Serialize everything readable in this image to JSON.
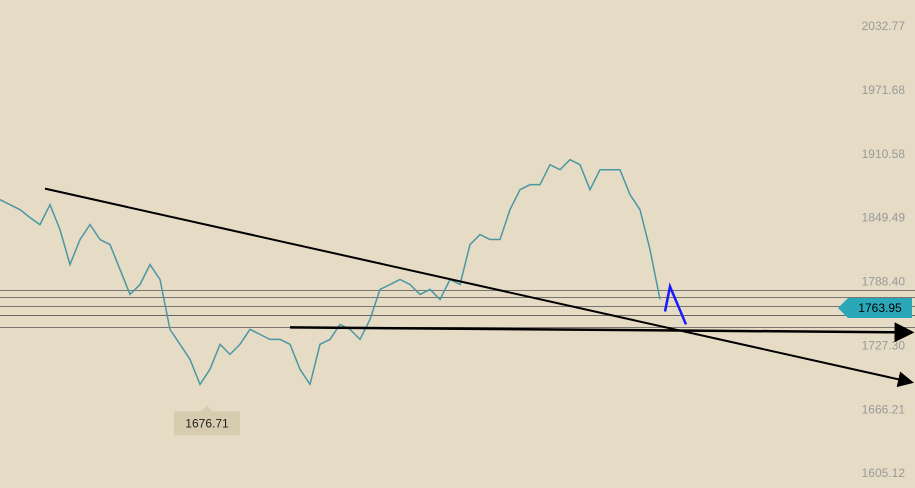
{
  "chart_data": {
    "type": "line",
    "x": [
      0,
      1,
      2,
      3,
      4,
      5,
      6,
      7,
      8,
      9,
      10,
      11,
      12,
      13,
      14,
      15,
      16,
      17,
      18,
      19,
      20,
      21,
      22,
      23,
      24,
      25,
      26,
      27,
      28,
      29,
      30,
      31,
      32,
      33,
      34,
      35,
      36,
      37,
      38,
      39,
      40,
      41,
      42,
      43,
      44,
      45,
      46,
      47,
      48,
      49,
      50,
      51,
      52,
      53,
      54,
      55,
      56,
      57,
      58,
      59,
      60,
      61,
      62,
      63,
      64,
      65,
      66
    ],
    "series": [
      {
        "color": "#4a97a3",
        "values": [
          1867.6,
          1862.8,
          1858.0,
          1850.4,
          1843.7,
          1862.8,
          1838.9,
          1805.5,
          1829.4,
          1843.7,
          1829.4,
          1824.6,
          1800.8,
          1776.9,
          1786.4,
          1805.5,
          1791.2,
          1743.5,
          1729.2,
          1714.8,
          1690.9,
          1705.3,
          1729.2,
          1719.6,
          1729.2,
          1743.5,
          1738.7,
          1733.9,
          1733.9,
          1729.2,
          1705.3,
          1690.9,
          1729.2,
          1733.9,
          1748.2,
          1743.5,
          1733.9,
          1753.0,
          1781.7,
          1786.4,
          1791.2,
          1786.4,
          1776.9,
          1781.7,
          1772.1,
          1791.2,
          1786.4,
          1824.6,
          1834.2,
          1829.4,
          1829.4,
          1858.0,
          1877.1,
          1881.9,
          1881.9,
          1901.0,
          1896.2,
          1905.8,
          1901.0,
          1877.1,
          1896.2,
          1896.2,
          1896.2,
          1872.4,
          1858.0,
          1819.9,
          1772.1
        ]
      }
    ],
    "xlim": [
      0,
      91.5
    ],
    "ylim": [
      2058.55,
      1591.76
    ],
    "yticks": [
      2032.77,
      1971.68,
      1910.58,
      1849.49,
      {
        "value": 1788.4,
        "label": "1788.40"
      },
      {
        "value": 1727.3,
        "label": "1727.30"
      },
      1666.21,
      1605.12
    ],
    "levels": [
      1780.69,
      1774.0,
      1765.4,
      1756.8,
      1745.4
    ],
    "level_color": "#555555",
    "trendlines": [
      {
        "x": [
          4.5,
          91.2
        ],
        "y": [
          1878.1,
          1692.8
        ]
      },
      {
        "x": [
          29,
          91.2
        ],
        "y": [
          1745.4,
          1740.6
        ]
      }
    ],
    "trend_color": "#000000",
    "arrow": {
      "x": [
        66.5,
        67,
        68.6
      ],
      "y": [
        1760.6,
        1784.5,
        1748.2
      ],
      "color": "#1a1aff"
    },
    "last_price": 1763.95,
    "last_price_color": "#2aa8b8",
    "low_label": {
      "x": 20.7,
      "value": 1676.71
    }
  }
}
